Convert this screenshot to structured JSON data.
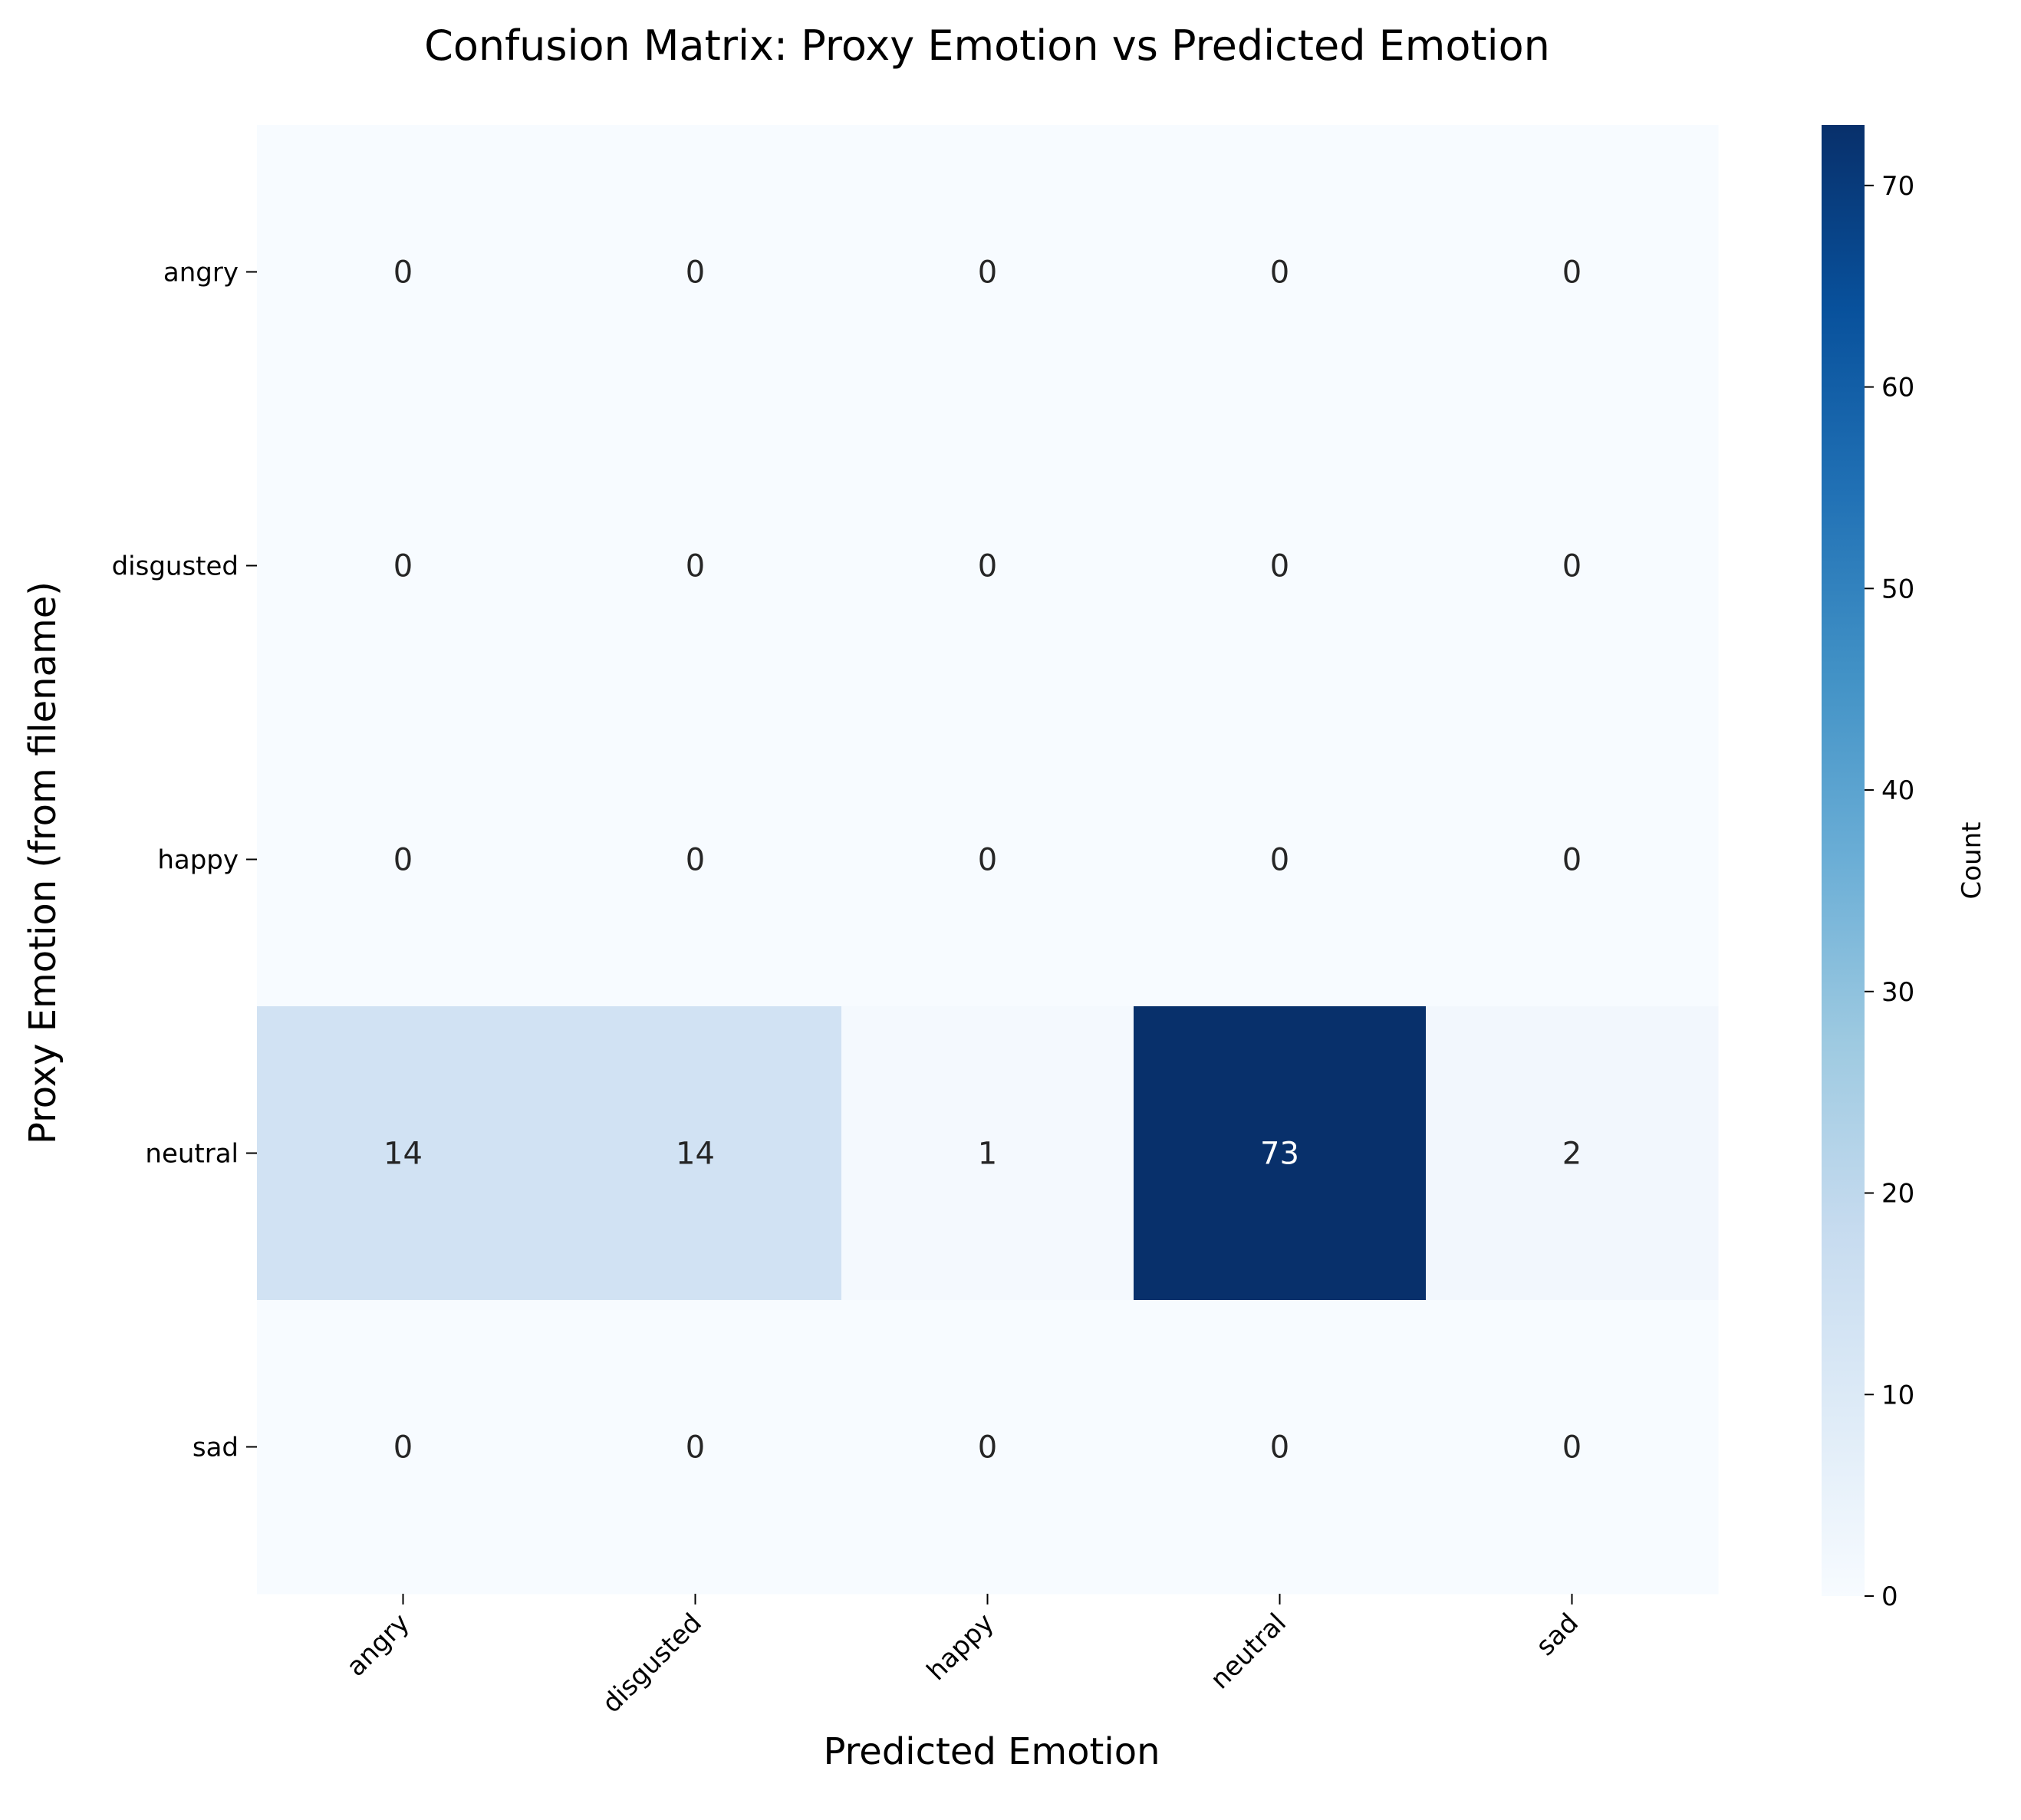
{
  "chart_data": {
    "type": "heatmap",
    "title": "Confusion Matrix: Proxy Emotion vs Predicted Emotion",
    "xlabel": "Predicted Emotion",
    "ylabel": "Proxy Emotion (from filename)",
    "x_categories": [
      "angry",
      "disgusted",
      "happy",
      "neutral",
      "sad"
    ],
    "y_categories": [
      "angry",
      "disgusted",
      "happy",
      "neutral",
      "sad"
    ],
    "values": [
      [
        0,
        0,
        0,
        0,
        0
      ],
      [
        0,
        0,
        0,
        0,
        0
      ],
      [
        0,
        0,
        0,
        0,
        0
      ],
      [
        14,
        14,
        1,
        73,
        2
      ],
      [
        0,
        0,
        0,
        0,
        0
      ]
    ],
    "colorbar": {
      "label": "Count",
      "range": [
        0,
        73
      ],
      "ticks": [
        0,
        10,
        20,
        30,
        40,
        50,
        60,
        70
      ],
      "colormap": "Blues",
      "low_color": "#f7fbff",
      "high_color": "#08306b"
    },
    "annotation_colors": {
      "dark": "#262626",
      "light": "#ffffff"
    }
  }
}
